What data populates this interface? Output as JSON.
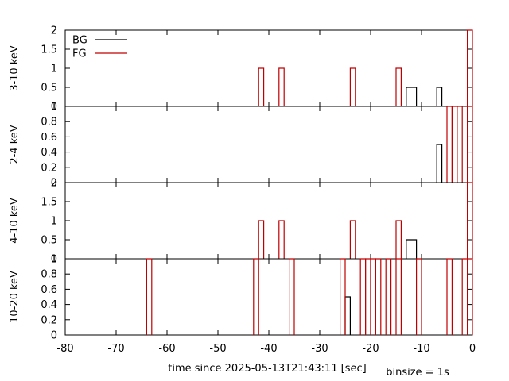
{
  "chart_data": {
    "type": "bar",
    "style": "step",
    "xlabel": "time since 2025-05-13T21:43:11 [sec]",
    "note": "binsize = 1s",
    "xlim": [
      -80,
      0
    ],
    "xticks": [
      -80,
      -70,
      -60,
      -50,
      -40,
      -30,
      -20,
      -10,
      0
    ],
    "legend": {
      "placement": "top-left",
      "entries": [
        {
          "name": "BG",
          "color": "#000000"
        },
        {
          "name": "FG",
          "color": "#c00000"
        }
      ]
    },
    "panels": [
      {
        "ylabel": "3-10 keV",
        "ylim": [
          0,
          2
        ],
        "yticks": [
          "0",
          "0.5",
          "1",
          "1.5",
          "2"
        ],
        "series": [
          {
            "name": "BG",
            "color": "#000000",
            "bins": [
              [
                -13,
                -11,
                0.5
              ],
              [
                -7,
                -6,
                0.5
              ]
            ]
          },
          {
            "name": "FG",
            "color": "#c00000",
            "bins": [
              [
                -42,
                -41,
                1
              ],
              [
                -38,
                -37,
                1
              ],
              [
                -24,
                -23,
                1
              ],
              [
                -15,
                -14,
                1
              ],
              [
                -1,
                0,
                2
              ]
            ]
          }
        ]
      },
      {
        "ylabel": "2-4 keV",
        "ylim": [
          0,
          1
        ],
        "yticks": [
          "0",
          "0.2",
          "0.4",
          "0.6",
          "0.8",
          "1"
        ],
        "series": [
          {
            "name": "BG",
            "color": "#000000",
            "bins": [
              [
                -7,
                -6,
                0.5
              ]
            ]
          },
          {
            "name": "FG",
            "color": "#c00000",
            "bins": [
              [
                -5,
                -4,
                1
              ],
              [
                -4,
                -3,
                1
              ],
              [
                -3,
                -2,
                1
              ],
              [
                -1,
                0,
                1
              ]
            ]
          }
        ]
      },
      {
        "ylabel": "4-10 keV",
        "ylim": [
          0,
          2
        ],
        "yticks": [
          "0",
          "0.5",
          "1",
          "1.5",
          "2"
        ],
        "series": [
          {
            "name": "BG",
            "color": "#000000",
            "bins": [
              [
                -13,
                -11,
                0.5
              ]
            ]
          },
          {
            "name": "FG",
            "color": "#c00000",
            "bins": [
              [
                -42,
                -41,
                1
              ],
              [
                -38,
                -37,
                1
              ],
              [
                -24,
                -23,
                1
              ],
              [
                -15,
                -14,
                1
              ],
              [
                -1,
                0,
                2
              ]
            ]
          }
        ]
      },
      {
        "ylabel": "10-20 keV",
        "ylim": [
          0,
          1
        ],
        "yticks": [
          "0",
          "0.2",
          "0.4",
          "0.6",
          "0.8",
          "1"
        ],
        "series": [
          {
            "name": "BG",
            "color": "#000000",
            "bins": [
              [
                -25,
                -24,
                0.5
              ]
            ]
          },
          {
            "name": "FG",
            "color": "#c00000",
            "bins": [
              [
                -64,
                -63,
                1
              ],
              [
                -43,
                -42,
                1
              ],
              [
                -36,
                -35,
                1
              ],
              [
                -26,
                -25,
                1
              ],
              [
                -22,
                -21,
                1
              ],
              [
                -21,
                -20,
                1
              ],
              [
                -20,
                -19,
                1
              ],
              [
                -19,
                -18,
                1
              ],
              [
                -17,
                -16,
                1
              ],
              [
                -15,
                -14,
                1
              ],
              [
                -11,
                -10,
                1
              ],
              [
                -5,
                -4,
                1
              ],
              [
                -2,
                -1,
                1
              ],
              [
                -1,
                0,
                1
              ]
            ]
          }
        ]
      }
    ]
  }
}
